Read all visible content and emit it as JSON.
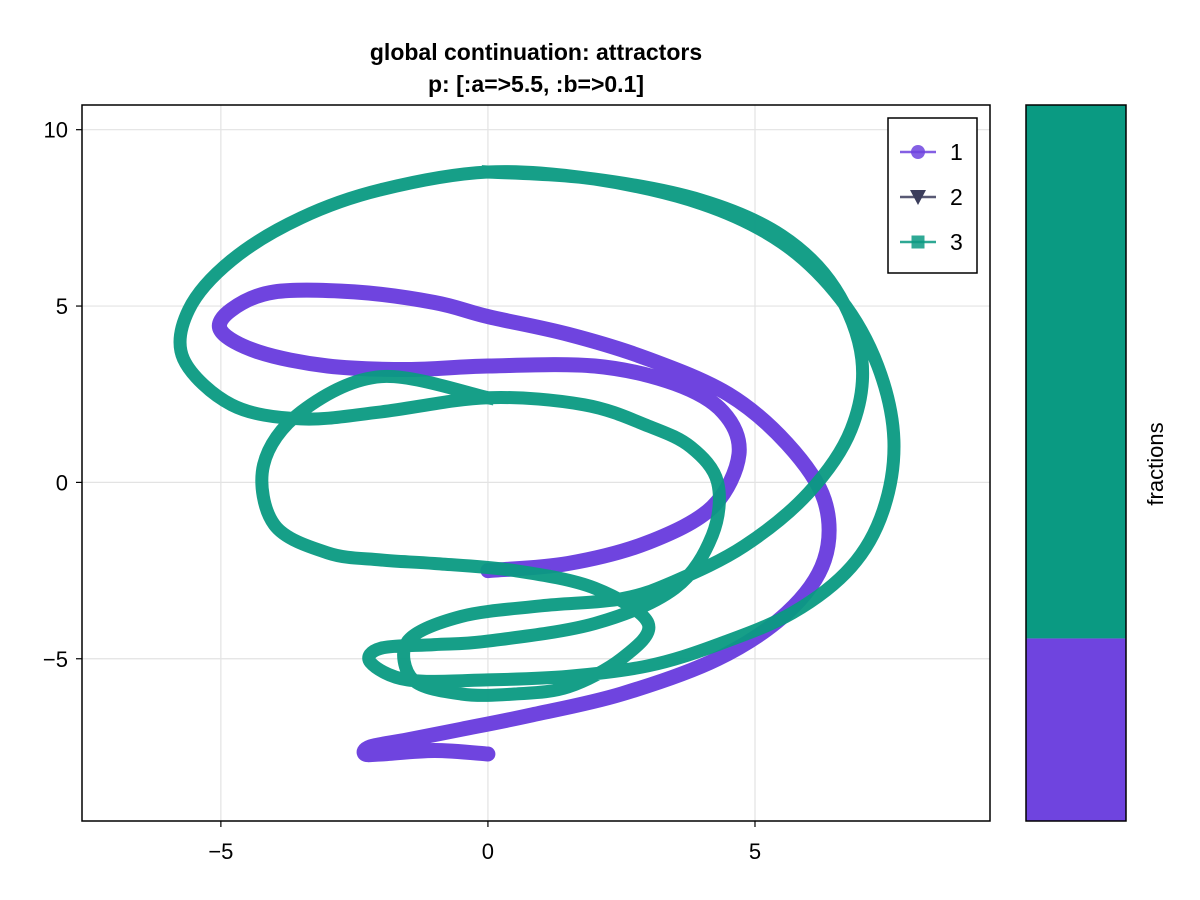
{
  "chart_data": [
    {
      "type": "line",
      "title": "global continuation: attractors",
      "subtitle": "p: [:a=>5.5, :b=>0.1]",
      "xlabel": "",
      "ylabel": "",
      "xlim": [
        -7.6,
        9.4
      ],
      "ylim": [
        -9.6,
        10.7
      ],
      "xticks": [
        -5,
        0,
        5
      ],
      "yticks": [
        -5,
        0,
        5,
        10
      ],
      "grid": true,
      "legend_position": "top-right",
      "legend": [
        {
          "label": "1",
          "color": "#6f44df",
          "marker": "circle"
        },
        {
          "label": "2",
          "color": "#3b3d5c",
          "marker": "triangle-down"
        },
        {
          "label": "3",
          "color": "#0a9a82",
          "marker": "square"
        }
      ],
      "series": [
        {
          "name": "1",
          "color": "#6f44df",
          "x": [
            0.0,
            1.5,
            3.0,
            4.2,
            4.7,
            4.4,
            3.5,
            2.0,
            0.0,
            -1.5,
            -3.0,
            -4.3,
            -5.0,
            -4.8,
            -4.0,
            -2.5,
            -1.0,
            0.0,
            1.5,
            3.0,
            4.5,
            5.6,
            6.3,
            6.3,
            5.6,
            4.3,
            2.5,
            0.8,
            -0.5,
            -1.5,
            -2.2,
            -2.3,
            -2.0,
            -1.0,
            0.0
          ],
          "y": [
            -2.5,
            -2.3,
            -1.7,
            -0.7,
            0.8,
            2.0,
            2.8,
            3.3,
            3.3,
            3.2,
            3.3,
            3.7,
            4.3,
            4.9,
            5.4,
            5.4,
            5.1,
            4.7,
            4.2,
            3.5,
            2.5,
            1.1,
            -0.5,
            -2.2,
            -3.7,
            -5.0,
            -6.0,
            -6.6,
            -7.0,
            -7.3,
            -7.5,
            -7.7,
            -7.7,
            -7.6,
            -7.7
          ]
        },
        {
          "name": "3",
          "color": "#0a9a82",
          "x": [
            0.0,
            2.0,
            4.0,
            5.5,
            6.6,
            7.3,
            7.6,
            7.4,
            6.8,
            5.7,
            4.3,
            3.0,
            1.5,
            0.0,
            -1.5,
            -2.2,
            -2.0,
            -1.0,
            0.0,
            2.0,
            3.5,
            4.2,
            4.3,
            3.8,
            3.0,
            1.8,
            0.0,
            -2.0,
            -3.5,
            -4.8,
            -5.7,
            -5.6,
            -4.8,
            -3.5,
            -2.0,
            0.0,
            2.0,
            4.0,
            5.5,
            6.5,
            7.0,
            6.8,
            6.0,
            4.8,
            3.5,
            2.5,
            1.0,
            -0.5,
            -1.5,
            -1.4,
            -0.5,
            0.5,
            1.5,
            2.5,
            3.0,
            2.0,
            0.5,
            -1.0,
            -2.0,
            -3.0,
            -4.0,
            -4.2,
            -3.5,
            -2.0,
            0.0
          ],
          "y": [
            8.8,
            8.6,
            7.9,
            6.8,
            5.2,
            3.3,
            1.2,
            -0.8,
            -2.4,
            -3.7,
            -4.6,
            -5.2,
            -5.5,
            -5.6,
            -5.6,
            -5.1,
            -4.7,
            -4.6,
            -4.5,
            -4.0,
            -3.0,
            -1.5,
            0.0,
            1.0,
            1.6,
            2.2,
            2.4,
            2.0,
            1.8,
            2.2,
            3.5,
            4.9,
            6.3,
            7.5,
            8.3,
            8.8,
            8.6,
            8.0,
            7.0,
            5.5,
            3.5,
            1.5,
            -0.3,
            -1.8,
            -2.8,
            -3.3,
            -3.5,
            -3.8,
            -4.5,
            -5.6,
            -6.0,
            -6.0,
            -5.8,
            -5.0,
            -4.0,
            -3.0,
            -2.5,
            -2.3,
            -2.2,
            -2.0,
            -1.2,
            0.5,
            2.0,
            3.0,
            2.4
          ]
        }
      ]
    },
    {
      "type": "bar",
      "ylabel": "fractions",
      "stacked": true,
      "values": [
        {
          "label": "1",
          "value": 0.255,
          "color": "#6f44df"
        },
        {
          "label": "3",
          "value": 0.745,
          "color": "#0a9a82"
        }
      ]
    }
  ]
}
